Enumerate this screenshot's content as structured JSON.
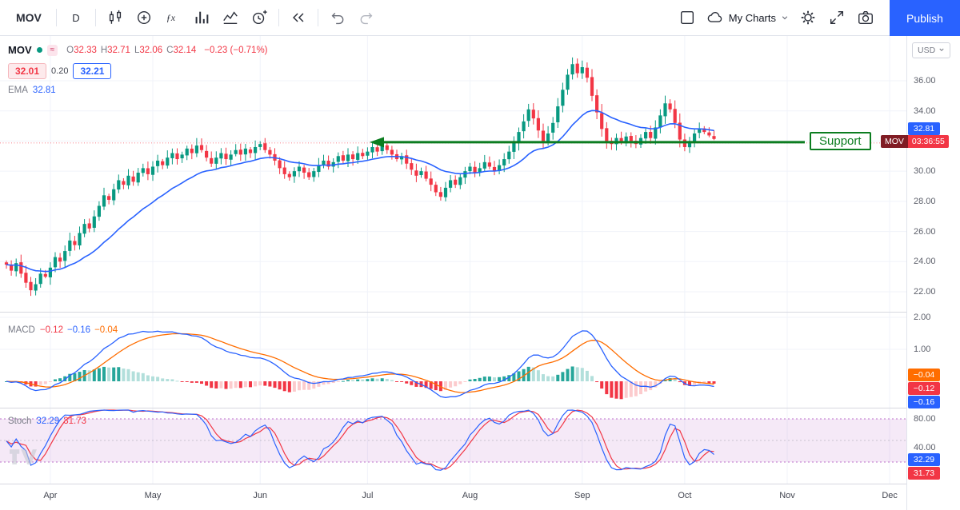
{
  "toolbar": {
    "symbol": "MOV",
    "interval": "D",
    "my_charts": "My Charts",
    "publish": "Publish"
  },
  "legend": {
    "symbol": "MOV",
    "status_badge": "≈",
    "ohlc": [
      {
        "k": "O",
        "v": "32.33"
      },
      {
        "k": "H",
        "v": "32.71"
      },
      {
        "k": "L",
        "v": "32.06"
      },
      {
        "k": "C",
        "v": "32.14"
      }
    ],
    "change": "−0.23 (−0.71%)",
    "bid": "32.01",
    "spread": "0.20",
    "ask": "32.21",
    "ema_label": "EMA",
    "ema_value": "32.81"
  },
  "macd_legend": {
    "label": "MACD",
    "values": [
      {
        "v": "−0.12",
        "color": "#f23645"
      },
      {
        "v": "−0.16",
        "color": "#2962ff"
      },
      {
        "v": "−0.04",
        "color": "#ff6d00"
      }
    ]
  },
  "stoch_legend": {
    "label": "Stoch",
    "values": [
      {
        "v": "32.29",
        "color": "#2962ff"
      },
      {
        "v": "31.73",
        "color": "#f23645"
      }
    ]
  },
  "annotations": {
    "support_label": "Support",
    "support_price": 31.92,
    "dotted_line_price": 31.87
  },
  "price_scale": {
    "currency": "USD",
    "main_ticks": [
      {
        "label": "36.00",
        "price": 36
      },
      {
        "label": "34.00",
        "price": 34
      },
      {
        "label": "30.00",
        "price": 30
      },
      {
        "label": "28.00",
        "price": 28
      },
      {
        "label": "26.00",
        "price": 26
      },
      {
        "label": "24.00",
        "price": 24
      },
      {
        "label": "22.00",
        "price": 22
      }
    ],
    "ema_badge": {
      "label": "32.81",
      "price": 32.81
    },
    "countdown_badge": {
      "symbol": "MOV",
      "time": "03:36:55"
    },
    "macd_ticks": [
      {
        "label": "2.00",
        "value": 2
      },
      {
        "label": "1.00",
        "value": 1
      }
    ],
    "macd_badges": [
      {
        "label": "−0.04",
        "color": "#ff6d00"
      },
      {
        "label": "−0.12",
        "color": "#f23645"
      },
      {
        "label": "−0.16",
        "color": "#2962ff"
      }
    ],
    "stoch_ticks": [
      {
        "label": "80.00",
        "value": 80
      },
      {
        "label": "40.00",
        "value": 40
      }
    ],
    "stoch_badges": [
      {
        "label": "32.29",
        "color": "#2962ff"
      },
      {
        "label": "31.73",
        "color": "#f23645"
      }
    ]
  },
  "time_axis": {
    "months": [
      {
        "label": "Apr",
        "index": 9
      },
      {
        "label": "May",
        "index": 30
      },
      {
        "label": "Jun",
        "index": 52
      },
      {
        "label": "Jul",
        "index": 74
      },
      {
        "label": "Aug",
        "index": 95
      },
      {
        "label": "Sep",
        "index": 118
      },
      {
        "label": "Oct",
        "index": 139
      },
      {
        "label": "Nov",
        "index": 160
      },
      {
        "label": "Dec",
        "index": 181
      }
    ]
  },
  "colors": {
    "accent_blue": "#2962ff",
    "candle_up": "#089981",
    "candle_down": "#f23645",
    "ema": "#2962ff",
    "macd_line": "#2962ff",
    "macd_signal": "#ff6d00",
    "hist_up": "#26a69a",
    "hist_up_weak": "#b2dfdb",
    "hist_down": "#f23645",
    "hist_down_weak": "#fccbcd",
    "stoch_k": "#2962ff",
    "stoch_d": "#f23645",
    "stoch_band": "#9c27b0",
    "support": "#0c7d20",
    "countdown_left_bg": "#801c24",
    "grid": "#f0f3fa"
  },
  "chart_data": {
    "type": "candlestick",
    "symbol": "MOV",
    "interval": "D",
    "visible_price_range": [
      21.8,
      37.6
    ],
    "price_grid": [
      22,
      24,
      26,
      28,
      30,
      32,
      34,
      36
    ],
    "closes": [
      23.8,
      23.4,
      23.9,
      23.2,
      22.6,
      22.1,
      22.5,
      23.2,
      23.0,
      23.6,
      24.3,
      24.0,
      24.7,
      25.4,
      25.1,
      25.9,
      26.5,
      26.2,
      27.0,
      27.7,
      28.4,
      28.1,
      28.8,
      29.4,
      29.1,
      29.7,
      29.3,
      29.9,
      30.2,
      29.8,
      30.3,
      30.7,
      30.4,
      30.9,
      31.2,
      30.8,
      31.1,
      31.5,
      31.2,
      31.7,
      31.4,
      30.9,
      30.5,
      30.9,
      31.2,
      30.8,
      31.1,
      31.4,
      31.1,
      31.5,
      31.2,
      31.6,
      31.8,
      31.4,
      31.1,
      30.7,
      30.2,
      29.8,
      29.6,
      30.0,
      30.3,
      29.9,
      29.6,
      30.0,
      30.4,
      30.7,
      30.3,
      30.6,
      31.0,
      30.7,
      31.1,
      30.8,
      31.2,
      31.0,
      31.3,
      31.6,
      31.3,
      31.7,
      31.4,
      31.1,
      30.8,
      31.0,
      30.5,
      30.1,
      29.7,
      30.0,
      29.5,
      29.1,
      28.6,
      28.3,
      28.9,
      29.4,
      29.1,
      29.6,
      30.0,
      30.3,
      29.9,
      30.2,
      30.6,
      30.3,
      30.0,
      30.4,
      30.8,
      31.3,
      31.9,
      32.6,
      33.3,
      34.1,
      33.5,
      32.7,
      32.0,
      32.5,
      33.2,
      34.3,
      35.4,
      36.4,
      37.1,
      36.5,
      36.9,
      36.2,
      35.0,
      33.9,
      32.8,
      32.0,
      31.8,
      32.2,
      31.9,
      32.3,
      32.0,
      31.8,
      32.2,
      32.6,
      32.2,
      32.9,
      33.7,
      34.5,
      34.1,
      33.2,
      32.1,
      31.6,
      32.0,
      32.5,
      32.8,
      32.6,
      32.37,
      32.14
    ],
    "last_candle": {
      "open": 32.33,
      "high": 32.71,
      "low": 32.06,
      "close": 32.14
    },
    "indicators": {
      "ema_period": 21,
      "macd": [
        12,
        26,
        9
      ],
      "stoch": [
        14,
        3,
        3
      ]
    }
  }
}
